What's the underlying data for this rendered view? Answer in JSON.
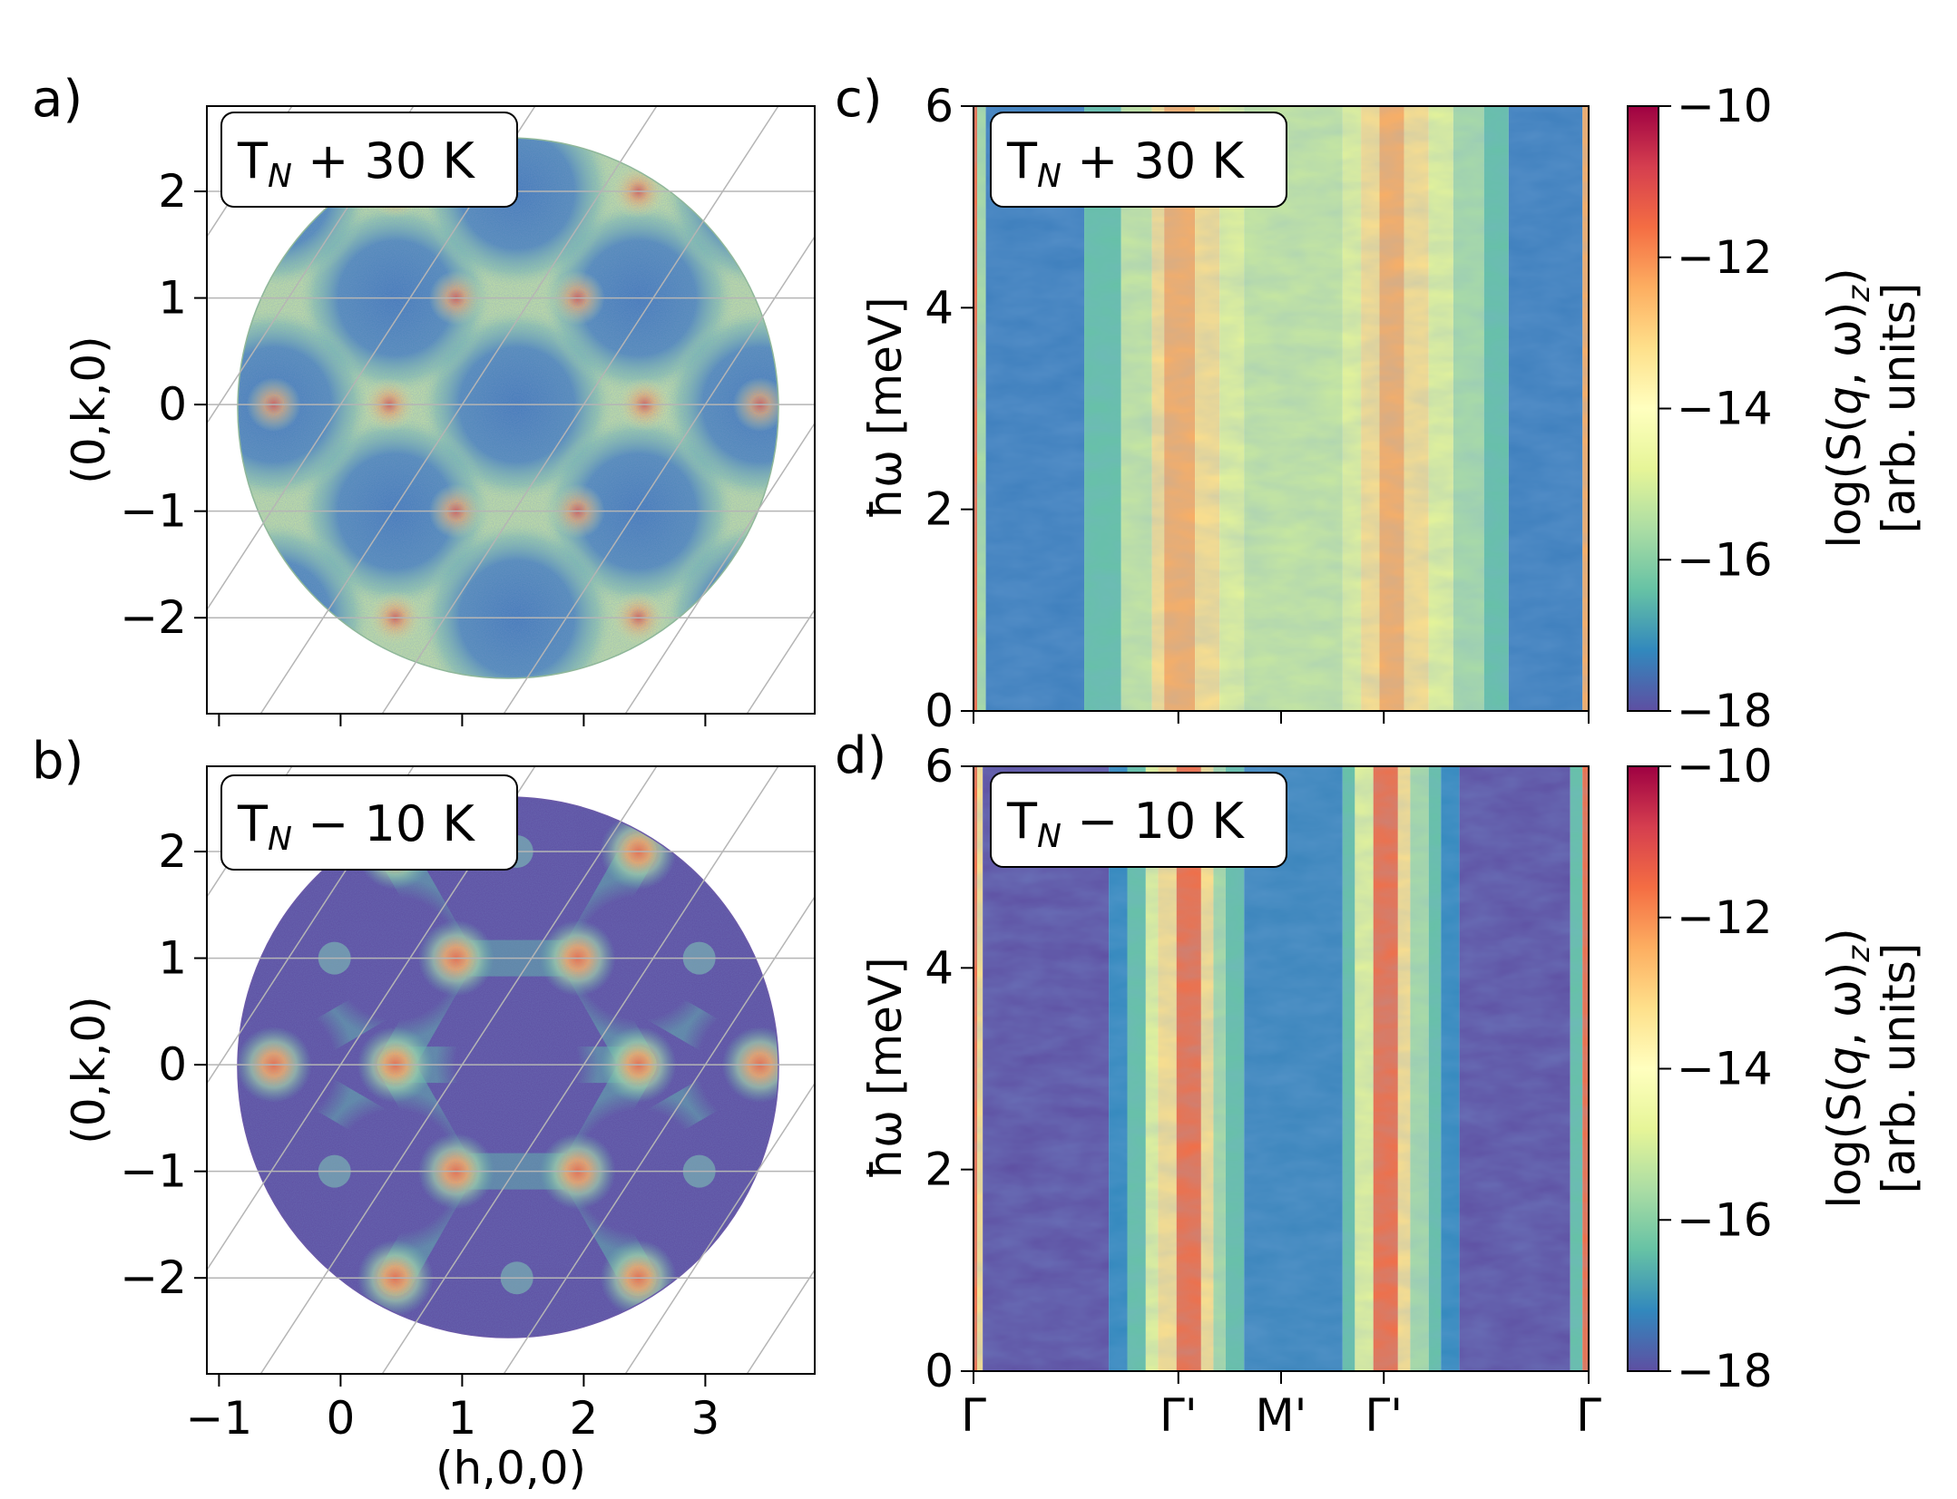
{
  "chart_data": [
    {
      "id": "a",
      "type": "heatmap",
      "panel_label": "a)",
      "annotation": {
        "base": "T",
        "sub": "N",
        "rest": " + 30 K"
      },
      "xlabel": "(h,0,0)",
      "ylabel": "(0,k,0)",
      "xlim": [
        -1.1,
        3.9
      ],
      "ylim": [
        -2.9,
        2.8
      ],
      "xticks": [
        -1,
        0,
        1,
        2,
        3
      ],
      "xtick_labels": [
        "−1",
        "0",
        "1",
        "2",
        "3"
      ],
      "yticks": [
        -2,
        -1,
        0,
        1,
        2
      ],
      "ytick_labels": [
        "−2",
        "−1",
        "0",
        "1",
        "2"
      ],
      "show_xtick_labels": false,
      "grid": "hexagonal reciprocal-lattice lines",
      "description_state": "paramagnetic, diffuse rings with hot spots"
    },
    {
      "id": "b",
      "type": "heatmap",
      "panel_label": "b)",
      "annotation": {
        "base": "T",
        "sub": "N",
        "rest": " − 10 K"
      },
      "xlabel": "(h,0,0)",
      "ylabel": "(0,k,0)",
      "xlim": [
        -1.1,
        3.9
      ],
      "ylim": [
        -2.9,
        2.8
      ],
      "xticks": [
        -1,
        0,
        1,
        2,
        3
      ],
      "xtick_labels": [
        "−1",
        "0",
        "1",
        "2",
        "3"
      ],
      "yticks": [
        -2,
        -1,
        0,
        1,
        2
      ],
      "ytick_labels": [
        "−2",
        "−1",
        "0",
        "1",
        "2"
      ],
      "show_xtick_labels": true,
      "grid": "hexagonal reciprocal-lattice lines"
    },
    {
      "id": "c",
      "type": "heatmap",
      "panel_label": "c)",
      "annotation": {
        "base": "T",
        "sub": "N",
        "rest": " + 30 K"
      },
      "ylabel": "ħω [meV]",
      "ylim": [
        0,
        6
      ],
      "yticks": [
        0,
        2,
        4,
        6
      ],
      "ytick_labels": [
        "0",
        "2",
        "4",
        "6"
      ],
      "xtick_positions": [
        0,
        0.333,
        0.5,
        0.667,
        1
      ],
      "xtick_labels": [
        "Γ",
        "Γ'",
        "M'",
        "Γ'",
        "Γ"
      ],
      "show_xtick_labels": false
    },
    {
      "id": "d",
      "type": "heatmap",
      "panel_label": "d)",
      "annotation": {
        "base": "T",
        "sub": "N",
        "rest": " − 10 K"
      },
      "ylabel": "ħω [meV]",
      "ylim": [
        0,
        6
      ],
      "yticks": [
        0,
        2,
        4,
        6
      ],
      "ytick_labels": [
        "0",
        "2",
        "4",
        "6"
      ],
      "xtick_positions": [
        0,
        0.333,
        0.5,
        0.667,
        1
      ],
      "xtick_labels": [
        "Γ",
        "Γ'",
        "M'",
        "Γ'",
        "Γ"
      ],
      "show_xtick_labels": true
    }
  ],
  "colorbar": {
    "label_line1": "log(S(q, ω)z)",
    "label_parts": {
      "pre": "log(S(",
      "q": "q",
      "post": ", ω)",
      "sub": "z",
      "close": ")"
    },
    "label_line2": "[arb. units]",
    "range": [
      -18,
      -10
    ],
    "ticks": [
      -10,
      -12,
      -14,
      -16,
      -18
    ],
    "tick_labels": [
      "−10",
      "−12",
      "−14",
      "−16",
      "−18"
    ],
    "colormap": "Spectral_r",
    "colors": [
      "#5e4fa2",
      "#3288bd",
      "#66c2a5",
      "#abdda4",
      "#e6f598",
      "#ffffbf",
      "#fee08b",
      "#fdae61",
      "#f46d43",
      "#d53e4f",
      "#9e0142"
    ]
  }
}
